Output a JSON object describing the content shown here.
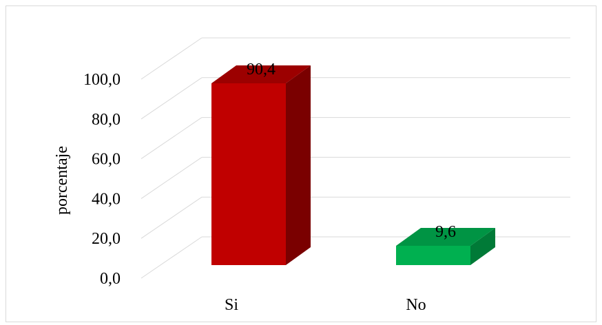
{
  "chart_data": {
    "type": "bar",
    "style": "3d-column",
    "categories": [
      "Si",
      "No"
    ],
    "values": [
      90.4,
      9.6
    ],
    "data_labels": [
      "90,4",
      "9,6"
    ],
    "ylabel": "porcentaje",
    "xlabel": "",
    "title": "",
    "ylim": [
      0,
      100
    ],
    "y_ticks": [
      "0,0",
      "20,0",
      "40,0",
      "60,0",
      "80,0",
      "100,0"
    ],
    "grid": true,
    "legend": "none",
    "colors": {
      "Si": {
        "front": "#c00000",
        "side": "#7a0000",
        "top": "#9c0000"
      },
      "No": {
        "front": "#00b050",
        "side": "#007a37",
        "top": "#009444"
      }
    },
    "grid_color": "#d9d9d9"
  }
}
